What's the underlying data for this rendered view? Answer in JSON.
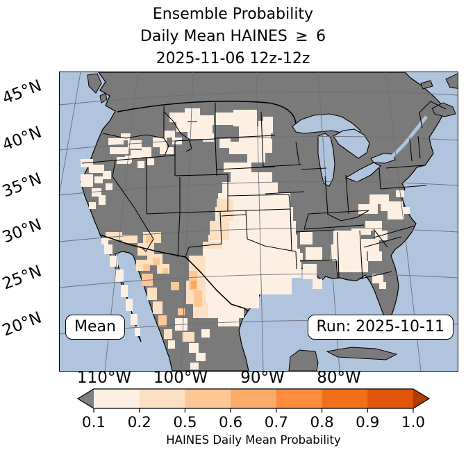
{
  "title": {
    "line1": "Ensemble Probability",
    "line2": "Daily Mean HAINES  ≥  6",
    "line3": "2025-11-06 12z-12z"
  },
  "badges": {
    "mean": "Mean",
    "run": "Run: 2025-10-11"
  },
  "axes": {
    "lat_labels": [
      "45°N",
      "40°N",
      "35°N",
      "30°N",
      "25°N",
      "20°N"
    ],
    "lon_labels": [
      "110°W",
      "100°W",
      "90°W",
      "80°W"
    ]
  },
  "colorbar": {
    "label": "HAINES Daily Mean Probability",
    "tick_labels": [
      "0.1",
      "0.2",
      "0.5",
      "0.6",
      "0.7",
      "0.8",
      "0.9",
      "1.0"
    ],
    "segment_colors": [
      "#fdf0e3",
      "#fde0c1",
      "#fdc795",
      "#fdab68",
      "#fd8c3d",
      "#f2701b",
      "#e05509"
    ],
    "under_arrow_color": "#808080",
    "over_arrow_color": "#b03d02"
  },
  "map_colors": {
    "ocean": "#b0c4de",
    "land": "#7a7a7a",
    "graticule": "#6e6e78",
    "boundary": "#000000"
  },
  "cell_colors": [
    "#fdf0e3",
    "#fde0c1",
    "#fdc795",
    "#fca95f"
  ],
  "prob_cells": [
    [
      30,
      125,
      18,
      12,
      0
    ],
    [
      42,
      133,
      22,
      12,
      0
    ],
    [
      30,
      147,
      18,
      18,
      0
    ],
    [
      50,
      150,
      12,
      10,
      0
    ],
    [
      62,
      142,
      12,
      12,
      0
    ],
    [
      46,
      167,
      14,
      12,
      0
    ],
    [
      56,
      177,
      10,
      14,
      0
    ],
    [
      42,
      187,
      10,
      10,
      0
    ],
    [
      66,
      160,
      10,
      10,
      0
    ],
    [
      70,
      95,
      22,
      10,
      0
    ],
    [
      88,
      88,
      14,
      10,
      0
    ],
    [
      98,
      98,
      20,
      12,
      0
    ],
    [
      72,
      108,
      28,
      10,
      0
    ],
    [
      102,
      112,
      16,
      12,
      0
    ],
    [
      118,
      108,
      14,
      14,
      0
    ],
    [
      82,
      122,
      20,
      10,
      0
    ],
    [
      112,
      128,
      10,
      10,
      0
    ],
    [
      126,
      124,
      10,
      10,
      0
    ],
    [
      94,
      120,
      10,
      10,
      0
    ],
    [
      134,
      94,
      20,
      14,
      0
    ],
    [
      150,
      84,
      16,
      10,
      0
    ],
    [
      162,
      94,
      14,
      10,
      0
    ],
    [
      144,
      108,
      20,
      10,
      0
    ],
    [
      158,
      58,
      26,
      14,
      0
    ],
    [
      180,
      52,
      22,
      18,
      0
    ],
    [
      198,
      62,
      24,
      14,
      0
    ],
    [
      168,
      72,
      32,
      14,
      0
    ],
    [
      200,
      76,
      20,
      12,
      0
    ],
    [
      184,
      86,
      26,
      10,
      0
    ],
    [
      206,
      88,
      16,
      12,
      0
    ],
    [
      224,
      58,
      28,
      18,
      0
    ],
    [
      250,
      54,
      34,
      24,
      0
    ],
    [
      258,
      78,
      30,
      24,
      0
    ],
    [
      244,
      100,
      42,
      18,
      0
    ],
    [
      270,
      102,
      26,
      28,
      0
    ],
    [
      286,
      70,
      18,
      36,
      0
    ],
    [
      293,
      64,
      14,
      24,
      0
    ],
    [
      294,
      96,
      12,
      20,
      0
    ],
    [
      230,
      95,
      16,
      14,
      0
    ],
    [
      236,
      130,
      40,
      14,
      0
    ],
    [
      246,
      144,
      60,
      14,
      0
    ],
    [
      234,
      158,
      80,
      16,
      0
    ],
    [
      228,
      174,
      104,
      20,
      0
    ],
    [
      224,
      194,
      112,
      20,
      0
    ],
    [
      218,
      214,
      122,
      20,
      0
    ],
    [
      214,
      234,
      128,
      20,
      0
    ],
    [
      226,
      182,
      24,
      32,
      1
    ],
    [
      216,
      214,
      28,
      28,
      1
    ],
    [
      206,
      244,
      28,
      24,
      1
    ],
    [
      120,
      230,
      26,
      16,
      1
    ],
    [
      112,
      246,
      24,
      18,
      1
    ],
    [
      126,
      262,
      22,
      16,
      1
    ],
    [
      140,
      276,
      18,
      14,
      1
    ],
    [
      66,
      230,
      24,
      12,
      1
    ],
    [
      90,
      234,
      22,
      12,
      1
    ],
    [
      124,
      236,
      10,
      10,
      2
    ],
    [
      134,
      268,
      10,
      10,
      2
    ],
    [
      148,
      282,
      8,
      8,
      2
    ],
    [
      60,
      238,
      10,
      10,
      0
    ],
    [
      64,
      248,
      12,
      14,
      0
    ],
    [
      72,
      264,
      12,
      16,
      0
    ],
    [
      80,
      284,
      12,
      18,
      0
    ],
    [
      88,
      306,
      10,
      18,
      0
    ],
    [
      95,
      326,
      10,
      18,
      0
    ],
    [
      102,
      348,
      10,
      16,
      0
    ],
    [
      108,
      366,
      8,
      14,
      0
    ],
    [
      110,
      270,
      16,
      16,
      1
    ],
    [
      118,
      290,
      16,
      18,
      2
    ],
    [
      126,
      310,
      14,
      18,
      1
    ],
    [
      134,
      330,
      14,
      18,
      1
    ],
    [
      142,
      350,
      12,
      16,
      2
    ],
    [
      150,
      370,
      12,
      14,
      1
    ],
    [
      156,
      386,
      10,
      12,
      0
    ],
    [
      120,
      276,
      10,
      10,
      2
    ],
    [
      206,
      254,
      140,
      18,
      0
    ],
    [
      200,
      272,
      148,
      24,
      0
    ],
    [
      196,
      296,
      138,
      24,
      0
    ],
    [
      202,
      320,
      85,
      20,
      0
    ],
    [
      210,
      340,
      55,
      14,
      0
    ],
    [
      228,
      354,
      30,
      12,
      0
    ],
    [
      186,
      264,
      24,
      38,
      1
    ],
    [
      182,
      300,
      28,
      34,
      1
    ],
    [
      192,
      332,
      22,
      22,
      1
    ],
    [
      186,
      286,
      12,
      28,
      2
    ],
    [
      193,
      314,
      12,
      24,
      2
    ],
    [
      189,
      300,
      8,
      12,
      3
    ],
    [
      160,
      302,
      12,
      12,
      2
    ],
    [
      170,
      340,
      10,
      10,
      2
    ],
    [
      166,
      354,
      18,
      18,
      0
    ],
    [
      176,
      374,
      18,
      14,
      1
    ],
    [
      186,
      390,
      14,
      14,
      0
    ],
    [
      196,
      404,
      14,
      12,
      0
    ],
    [
      188,
      418,
      12,
      10,
      0
    ],
    [
      204,
      370,
      12,
      12,
      0
    ],
    [
      346,
      230,
      18,
      18,
      0
    ],
    [
      354,
      252,
      24,
      18,
      0
    ],
    [
      350,
      276,
      20,
      22,
      0
    ],
    [
      364,
      298,
      14,
      14,
      0
    ],
    [
      340,
      260,
      10,
      10,
      0
    ],
    [
      394,
      228,
      40,
      20,
      0
    ],
    [
      390,
      248,
      52,
      24,
      0
    ],
    [
      400,
      272,
      44,
      16,
      0
    ],
    [
      420,
      224,
      28,
      10,
      0
    ],
    [
      440,
      214,
      24,
      14,
      0
    ],
    [
      432,
      240,
      28,
      18,
      0
    ],
    [
      454,
      228,
      18,
      14,
      0
    ],
    [
      444,
      258,
      20,
      14,
      0
    ],
    [
      430,
      190,
      28,
      14,
      0
    ],
    [
      446,
      176,
      28,
      14,
      0
    ],
    [
      462,
      186,
      32,
      14,
      0
    ],
    [
      472,
      200,
      24,
      12,
      0
    ],
    [
      490,
      194,
      14,
      10,
      0
    ],
    [
      484,
      170,
      12,
      10,
      0
    ],
    [
      450,
      290,
      16,
      14,
      0
    ],
    [
      460,
      302,
      10,
      10,
      0
    ]
  ],
  "chart_data": {
    "type": "heatmap",
    "title": "Ensemble Probability — Daily Mean HAINES ≥ 6",
    "valid_period": "2025-11-06 12z-12z",
    "statistic": "Mean",
    "model_run": "2025-10-11",
    "colorbar_label": "HAINES Daily Mean Probability",
    "levels": [
      0.1,
      0.2,
      0.5,
      0.6,
      0.7,
      0.8,
      0.9,
      1.0
    ],
    "colorbar_extend": "both",
    "lat_ticks_deg_N": [
      45,
      40,
      35,
      30,
      25,
      20
    ],
    "lon_ticks_deg_W": [
      110,
      100,
      90,
      80
    ],
    "legend_position": "bottom",
    "grid": true,
    "regions": [
      {
        "area": "Northern California / NW Nevada / SE Oregon",
        "probability": "0.1–0.2"
      },
      {
        "area": "Central Idaho / SW & central Montana",
        "probability": "0.1–0.2"
      },
      {
        "area": "Western Dakotas / Nebraska / Kansas / eastern Colorado plains",
        "probability": "0.1–0.5"
      },
      {
        "area": "Arizona / New Mexico",
        "probability": "0.2–0.6"
      },
      {
        "area": "Texas incl. Big Bend / Rio Grande",
        "probability": "0.1–0.6"
      },
      {
        "area": "Baja California / Sonora / northern Mexico",
        "probability": "0.1–0.6"
      },
      {
        "area": "Arkansas / Louisiana scattered",
        "probability": "0.1–0.2"
      },
      {
        "area": "Alabama / Georgia / Carolinas",
        "probability": "0.1–0.2"
      },
      {
        "area": "Virginia / mid-Atlantic",
        "probability": "0.1–0.2"
      },
      {
        "area": "Florida (isolated)",
        "probability": "0.1–0.2"
      },
      {
        "area": "Remainder of CONUS / Canada",
        "probability": "< 0.1 (masked gray)"
      }
    ]
  }
}
